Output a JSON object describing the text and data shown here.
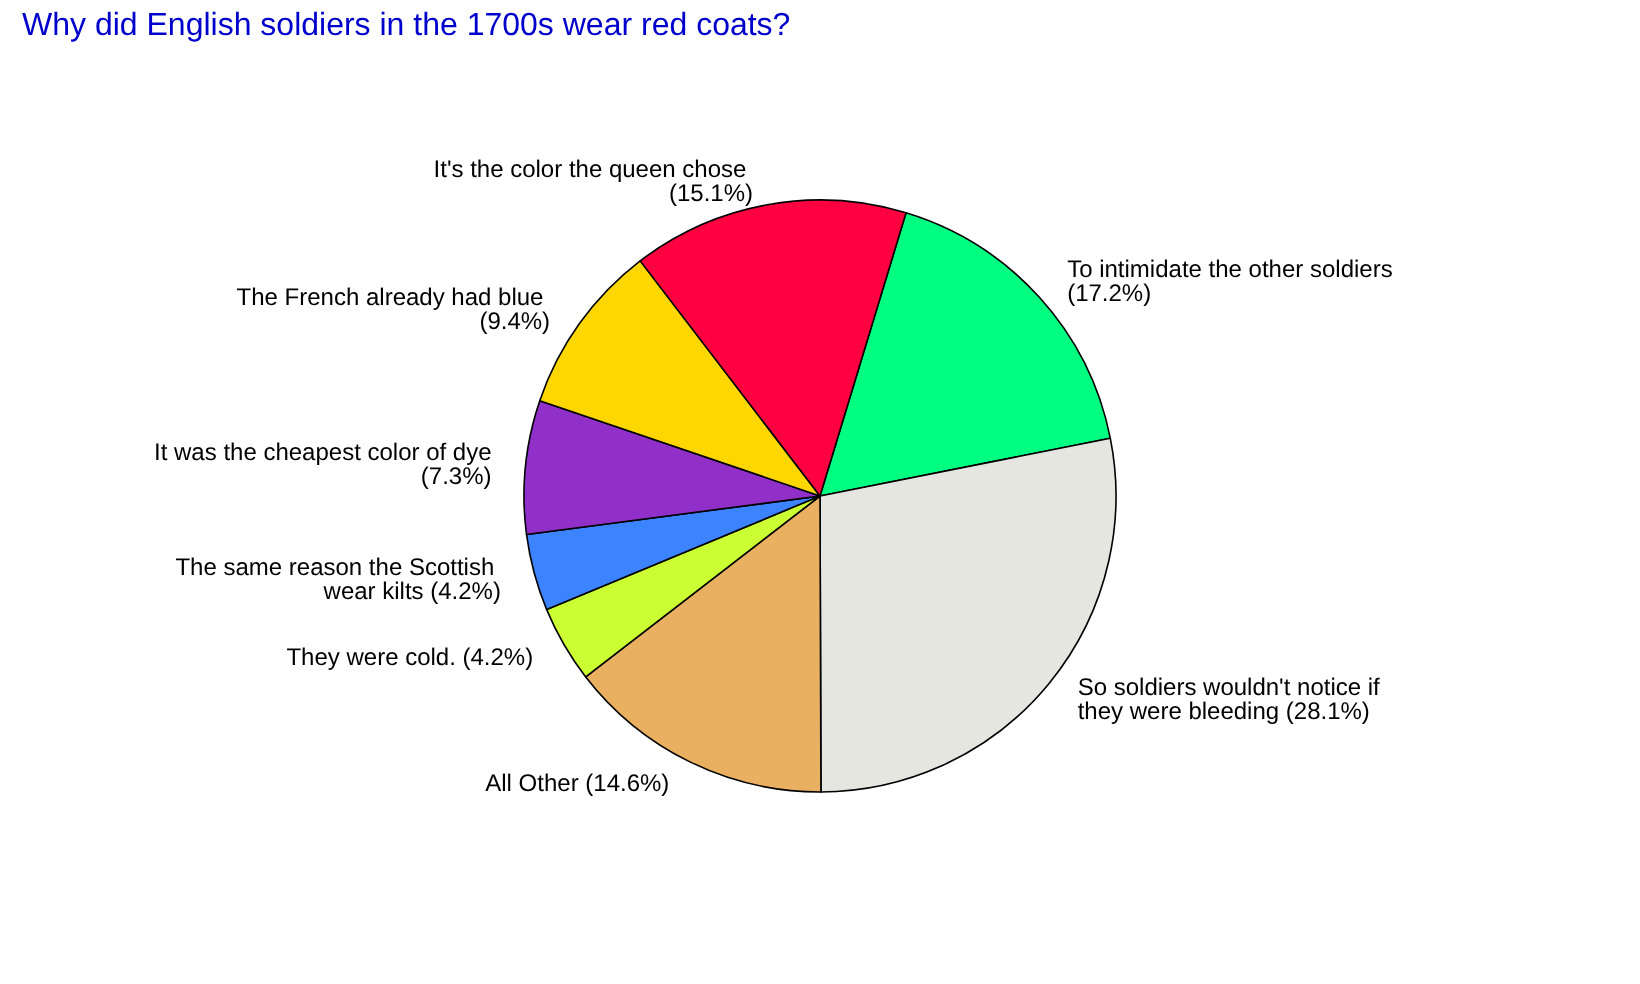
{
  "chart_data": {
    "type": "pie",
    "title": "Why did English soldiers in the 1700s wear red coats?",
    "categories": [
      "To intimidate the other soldiers",
      "So soldiers wouldn't notice if they were bleeding",
      "All Other",
      "They were cold.",
      "The same reason the Scottish wear kilts",
      "It was the cheapest color of dye",
      "The French already had blue",
      "It's the color the queen chose"
    ],
    "values": [
      17.2,
      28.1,
      14.6,
      4.2,
      4.2,
      7.3,
      9.4,
      15.1
    ],
    "value_labels": [
      "(17.2%)",
      "(28.1%)",
      "(14.6%)",
      "(4.2%)",
      "(4.2%)",
      "(7.3%)",
      "(9.4%)",
      "(15.1%)"
    ],
    "colors": [
      "#00ff80",
      "#e6e6e0",
      "#e8b060",
      "#ccff33",
      "#3c84ff",
      "#9030c8",
      "#ffd700",
      "#ff0040"
    ],
    "legend": false
  }
}
